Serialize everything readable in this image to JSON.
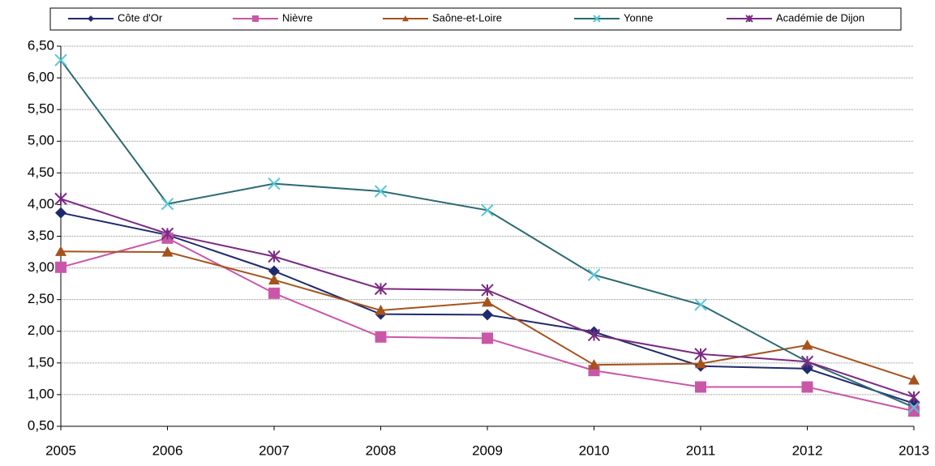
{
  "chart_data": {
    "type": "line",
    "categories": [
      "2005",
      "2006",
      "2007",
      "2008",
      "2009",
      "2010",
      "2011",
      "2012",
      "2013"
    ],
    "series": [
      {
        "name": "Côte d'Or",
        "color": "#1f2a6e",
        "marker": "diamond",
        "values": [
          3.87,
          3.52,
          2.95,
          2.27,
          2.26,
          1.99,
          1.45,
          1.41,
          0.86
        ]
      },
      {
        "name": "Nièvre",
        "color": "#c957a8",
        "marker": "square",
        "values": [
          3.01,
          3.47,
          2.6,
          1.91,
          1.89,
          1.38,
          1.12,
          1.12,
          0.74
        ]
      },
      {
        "name": "Saône-et-Loire",
        "color": "#a6521c",
        "marker": "triangle",
        "values": [
          3.26,
          3.25,
          2.81,
          2.33,
          2.46,
          1.47,
          1.49,
          1.78,
          1.23
        ]
      },
      {
        "name": "Yonne",
        "color": "#2b6a72",
        "marker_color": "#55c8d8",
        "marker": "x",
        "values": [
          6.28,
          4.01,
          4.33,
          4.21,
          3.91,
          2.89,
          2.42,
          1.52,
          0.8
        ]
      },
      {
        "name": "Académie de Dijon",
        "color": "#7b2a82",
        "marker": "asterisk",
        "values": [
          4.09,
          3.54,
          3.18,
          2.67,
          2.65,
          1.94,
          1.64,
          1.52,
          0.96
        ]
      }
    ],
    "ylim": [
      0.5,
      6.5
    ],
    "yticks": [
      {
        "value": 0.5,
        "label": "0,50"
      },
      {
        "value": 1,
        "label": "1,00"
      },
      {
        "value": 1.5,
        "label": "1,50"
      },
      {
        "value": 2,
        "label": "2,00"
      },
      {
        "value": 2.5,
        "label": "2,50"
      },
      {
        "value": 3,
        "label": "3,00"
      },
      {
        "value": 3.5,
        "label": "3,50"
      },
      {
        "value": 4,
        "label": "4,00"
      },
      {
        "value": 4.5,
        "label": "4,50"
      },
      {
        "value": 5,
        "label": "5,00"
      },
      {
        "value": 5.5,
        "label": "5,50"
      },
      {
        "value": 6,
        "label": "6,00"
      },
      {
        "value": 6.5,
        "label": "6,50"
      }
    ],
    "grid": true,
    "legend": "top"
  }
}
